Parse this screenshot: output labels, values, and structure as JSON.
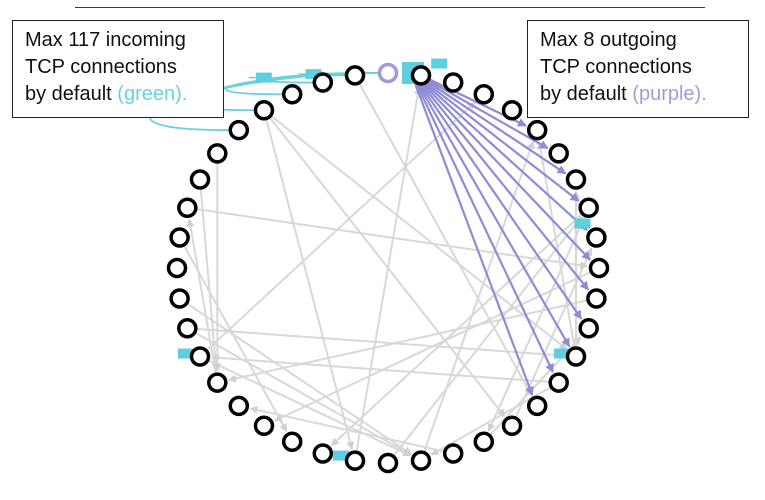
{
  "callouts": {
    "incoming": {
      "line1": "Max 117 incoming",
      "line2": "TCP connections",
      "line3_prefix": "by default ",
      "line3_highlight": "(green).",
      "highlight_color": "#6ad2df"
    },
    "outgoing": {
      "line1": "Max 8 outgoing",
      "line2": "TCP connections",
      "line3_prefix": "by default ",
      "line3_highlight": "(purple).",
      "highlight_color": "#a09cdc"
    }
  },
  "colors": {
    "node_ring": "#000000",
    "source_node_ring": "#a09cdc",
    "peer_edge": "#d8d8d8",
    "incoming_edge": "#6ad2df",
    "outgoing_edge": "#8f8bd6",
    "packet": "#5fcfe0",
    "top_rule": "#1c3b7a"
  },
  "diagram": {
    "node_count": 40,
    "incoming_connections_shown": 5,
    "outgoing_connections_shown": 11,
    "icons": [
      "packet-icon",
      "node-ring-icon",
      "arrowhead-icon"
    ]
  }
}
